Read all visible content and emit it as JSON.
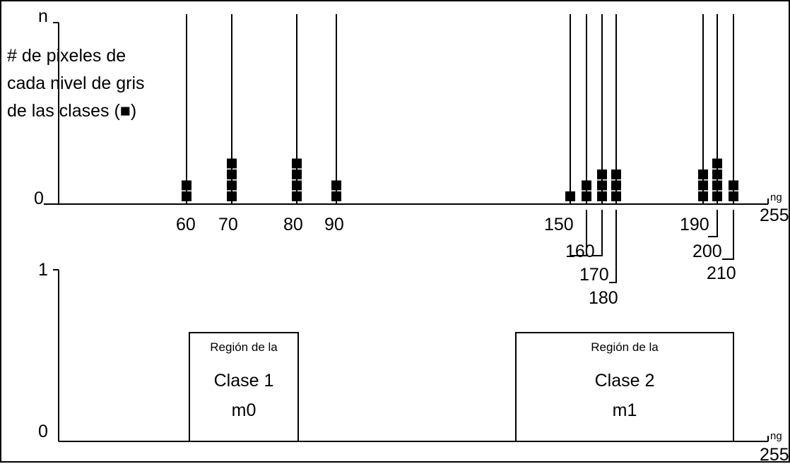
{
  "top_plot": {
    "y_top_label": "n",
    "y_zero_label": "0",
    "y_caption": [
      "# de pixeles de",
      "cada nivel de gris",
      "de las clases (■)"
    ],
    "x_unit": "ng",
    "x_max_label": "255",
    "bars": [
      {
        "level": "60",
        "count": 2
      },
      {
        "level": "70",
        "count": 4
      },
      {
        "level": "80",
        "count": 4
      },
      {
        "level": "90",
        "count": 2
      },
      {
        "level": "150",
        "count": 1
      },
      {
        "level": "160",
        "count": 2
      },
      {
        "level": "170",
        "count": 3
      },
      {
        "level": "180",
        "count": 3
      },
      {
        "level": "190",
        "count": 3
      },
      {
        "level": "200",
        "count": 4
      },
      {
        "level": "210",
        "count": 2
      }
    ]
  },
  "bottom_plot": {
    "y_top_label": "1",
    "y_zero_label": "0",
    "x_unit": "ng",
    "x_max_label": "255",
    "regions": [
      {
        "title": "Región de la",
        "name": "Clase 1",
        "mean": "m0",
        "x_from": 60,
        "x_to": 90
      },
      {
        "title": "Región de la",
        "name": "Clase 2",
        "mean": "m1",
        "x_from": 150,
        "x_to": 210
      }
    ]
  },
  "colors": {
    "ink": "#000000",
    "background": "#ffffff"
  }
}
